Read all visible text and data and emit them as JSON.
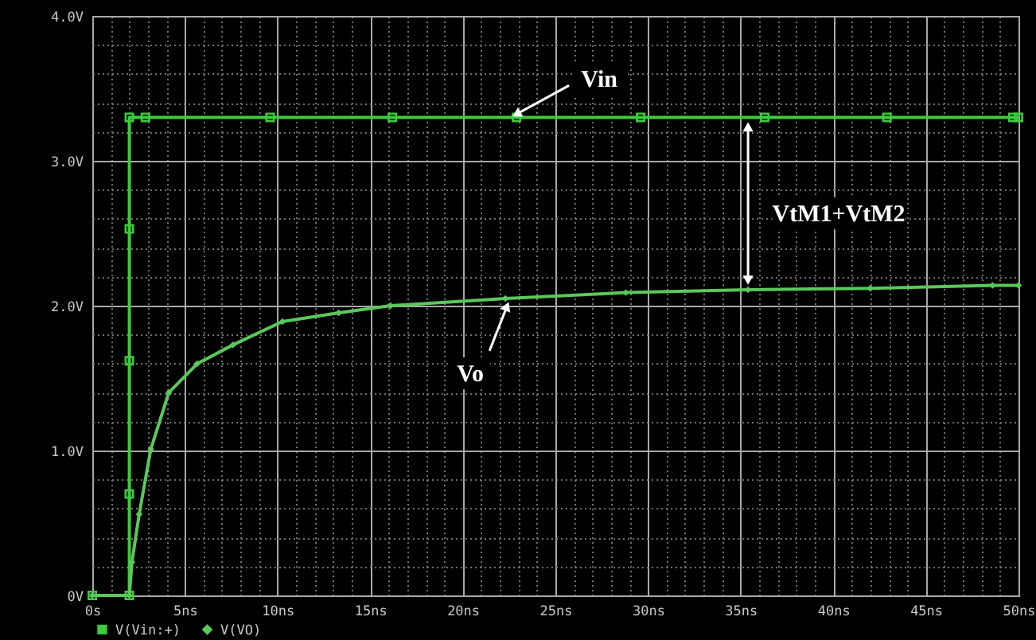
{
  "chart_data": {
    "type": "line",
    "xlim": [
      0,
      50
    ],
    "ylim": [
      0,
      4
    ],
    "xticks": [
      {
        "value": 0,
        "label": "0s"
      },
      {
        "value": 1,
        "label": null
      },
      {
        "value": 2,
        "label": null
      },
      {
        "value": 3,
        "label": null
      },
      {
        "value": 4,
        "label": null
      },
      {
        "value": 5,
        "label": "5ns"
      },
      {
        "value": 6,
        "label": null
      },
      {
        "value": 7,
        "label": null
      },
      {
        "value": 8,
        "label": null
      },
      {
        "value": 9,
        "label": null
      },
      {
        "value": 10,
        "label": "10ns"
      },
      {
        "value": 11,
        "label": null
      },
      {
        "value": 12,
        "label": null
      },
      {
        "value": 13,
        "label": null
      },
      {
        "value": 14,
        "label": null
      },
      {
        "value": 15,
        "label": "15ns"
      },
      {
        "value": 16,
        "label": null
      },
      {
        "value": 17,
        "label": null
      },
      {
        "value": 18,
        "label": null
      },
      {
        "value": 19,
        "label": null
      },
      {
        "value": 20,
        "label": "20ns"
      },
      {
        "value": 21,
        "label": null
      },
      {
        "value": 22,
        "label": null
      },
      {
        "value": 23,
        "label": null
      },
      {
        "value": 24,
        "label": null
      },
      {
        "value": 25,
        "label": "25ns"
      },
      {
        "value": 26,
        "label": null
      },
      {
        "value": 27,
        "label": null
      },
      {
        "value": 28,
        "label": null
      },
      {
        "value": 29,
        "label": null
      },
      {
        "value": 30,
        "label": "30ns"
      },
      {
        "value": 31,
        "label": null
      },
      {
        "value": 32,
        "label": null
      },
      {
        "value": 33,
        "label": null
      },
      {
        "value": 34,
        "label": null
      },
      {
        "value": 35,
        "label": "35ns"
      },
      {
        "value": 36,
        "label": null
      },
      {
        "value": 37,
        "label": null
      },
      {
        "value": 38,
        "label": null
      },
      {
        "value": 39,
        "label": null
      },
      {
        "value": 40,
        "label": "40ns"
      },
      {
        "value": 41,
        "label": null
      },
      {
        "value": 42,
        "label": null
      },
      {
        "value": 43,
        "label": null
      },
      {
        "value": 44,
        "label": null
      },
      {
        "value": 45,
        "label": "45ns"
      },
      {
        "value": 46,
        "label": null
      },
      {
        "value": 47,
        "label": null
      },
      {
        "value": 48,
        "label": null
      },
      {
        "value": 49,
        "label": null
      },
      {
        "value": 50,
        "label": "50ns"
      }
    ],
    "yticks": [
      {
        "value": 0,
        "label": "0V"
      },
      {
        "value": 0.2,
        "label": null
      },
      {
        "value": 0.4,
        "label": null
      },
      {
        "value": 0.6,
        "label": null
      },
      {
        "value": 0.8,
        "label": null
      },
      {
        "value": 1,
        "label": "1.0V"
      },
      {
        "value": 1.2,
        "label": null
      },
      {
        "value": 1.4,
        "label": null
      },
      {
        "value": 1.6,
        "label": null
      },
      {
        "value": 1.8,
        "label": null
      },
      {
        "value": 2,
        "label": "2.0V"
      },
      {
        "value": 2.2,
        "label": null
      },
      {
        "value": 2.4,
        "label": null
      },
      {
        "value": 2.6,
        "label": null
      },
      {
        "value": 2.8,
        "label": null
      },
      {
        "value": 3,
        "label": "3.0V"
      },
      {
        "value": 3.2,
        "label": null
      },
      {
        "value": 3.4,
        "label": null
      },
      {
        "value": 3.6,
        "label": null
      },
      {
        "value": 3.8,
        "label": null
      },
      {
        "value": 4,
        "label": "4.0V"
      }
    ],
    "grid": true,
    "legend": "bottom",
    "line_style": "solid",
    "series": [
      {
        "name": "V(Vin:+)",
        "color": "#3ccc3c",
        "marker": "square",
        "x": [
          0,
          2.0,
          2.0,
          2.0,
          2.0,
          2.0,
          2.87,
          9.6,
          16.2,
          22.9,
          29.6,
          36.3,
          42.9,
          49.7,
          50
        ],
        "values": [
          0,
          0,
          0.7,
          1.62,
          2.53,
          3.3,
          3.3,
          3.3,
          3.3,
          3.3,
          3.3,
          3.3,
          3.3,
          3.3,
          3.3
        ]
      },
      {
        "name": "V(VO)",
        "color": "#5ac85a",
        "marker": "diamond",
        "x": [
          0,
          2.0,
          2.14,
          2.53,
          3.16,
          4.13,
          5.67,
          7.6,
          10.26,
          13.3,
          16.1,
          22.3,
          28.8,
          35.4,
          42.0,
          48.6,
          50
        ],
        "values": [
          0,
          0,
          0.23,
          0.56,
          1.01,
          1.4,
          1.6,
          1.73,
          1.89,
          1.95,
          2.0,
          2.05,
          2.09,
          2.11,
          2.12,
          2.14,
          2.14
        ]
      }
    ],
    "annotations": [
      {
        "text": "Vin",
        "x": 22.9,
        "y": 3.3
      },
      {
        "text": "VtM1+VtM2",
        "x": 35.4,
        "y": 2.11
      },
      {
        "text": "Vo",
        "x": 22.3,
        "y": 2.05
      }
    ]
  }
}
